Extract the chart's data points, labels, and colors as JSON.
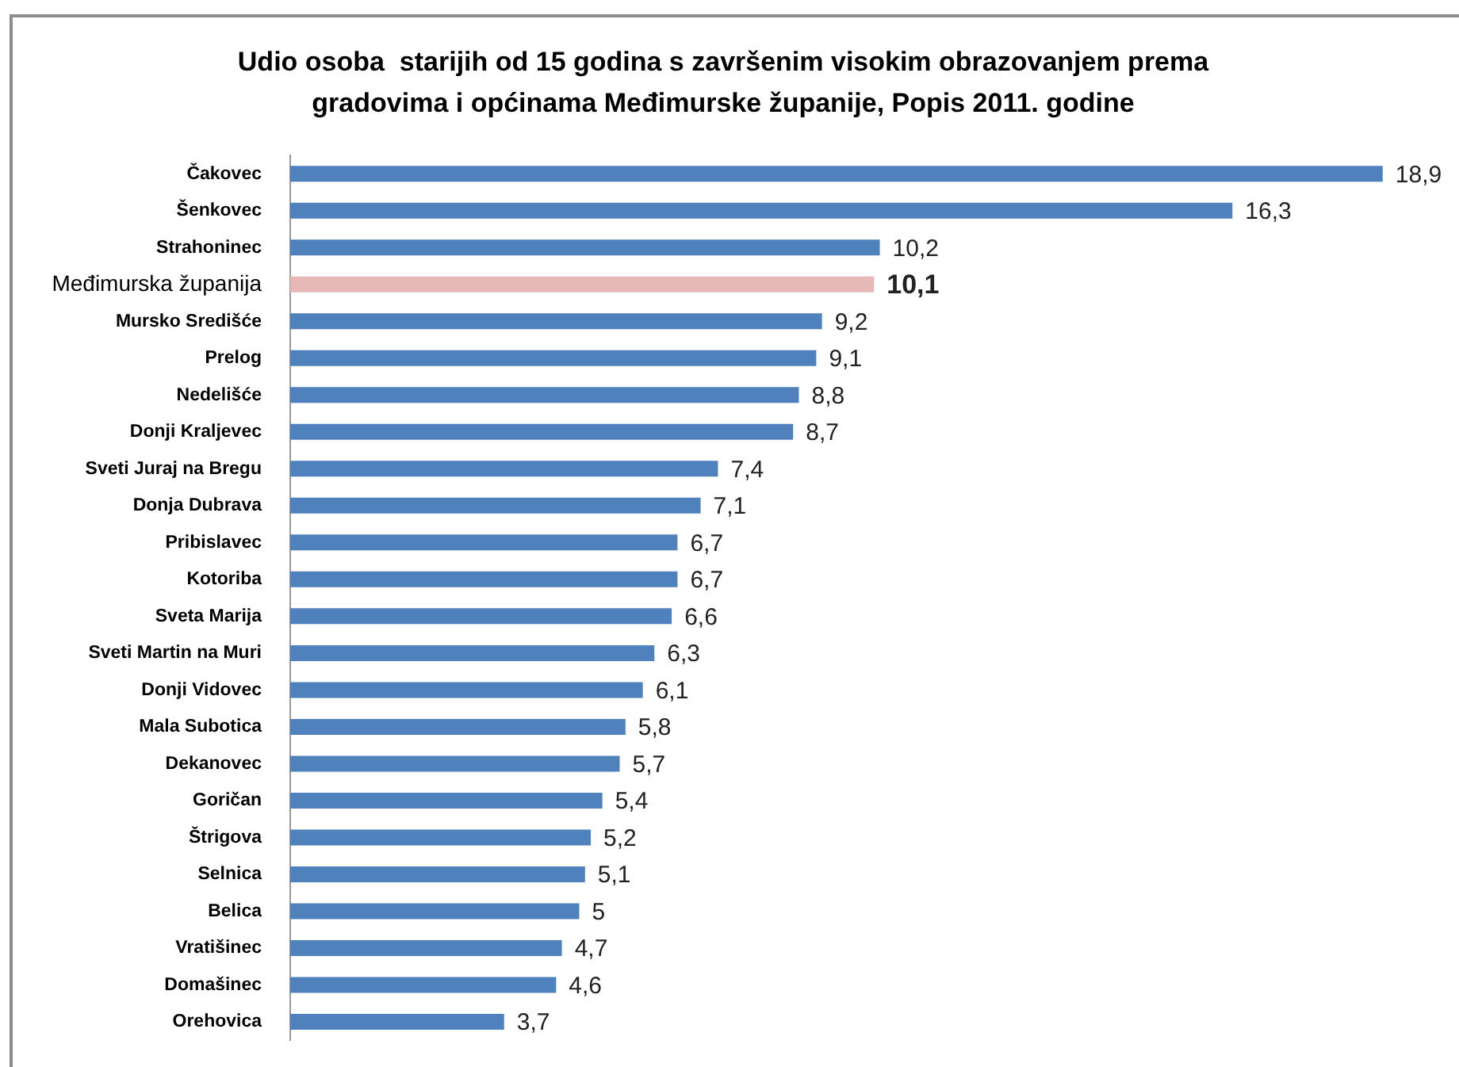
{
  "chart_data": {
    "type": "bar",
    "orientation": "horizontal",
    "title": "Udio osoba  starijih od 15 godina s završenim visokim obrazovanjem prema gradovima i općinama Međimurske županije, Popis 2011. godine",
    "categories": [
      "Čakovec",
      "Šenkovec",
      "Strahoninec",
      "Međimurska županija",
      "Mursko Središće",
      "Prelog",
      "Nedelišće",
      "Donji Kraljevec",
      "Sveti Juraj na Bregu",
      "Donja Dubrava",
      "Pribislavec",
      "Kotoriba",
      "Sveta Marija",
      "Sveti Martin na Muri",
      "Donji Vidovec",
      "Mala Subotica",
      "Dekanovec",
      "Goričan",
      "Štrigova",
      "Selnica",
      "Belica",
      "Vratišinec",
      "Domašinec",
      "Orehovica"
    ],
    "values": [
      18.9,
      16.3,
      10.2,
      10.1,
      9.2,
      9.1,
      8.8,
      8.7,
      7.4,
      7.1,
      6.7,
      6.7,
      6.6,
      6.3,
      6.1,
      5.8,
      5.7,
      5.4,
      5.2,
      5.1,
      5,
      4.7,
      4.6,
      3.7
    ],
    "value_labels": [
      "18,9",
      "16,3",
      "10,2",
      "10,1",
      "9,2",
      "9,1",
      "8,8",
      "8,7",
      "7,4",
      "7,1",
      "6,7",
      "6,7",
      "6,6",
      "6,3",
      "6,1",
      "5,8",
      "5,7",
      "5,4",
      "5,2",
      "5,1",
      "5",
      "4,7",
      "4,6",
      "3,7"
    ],
    "colors": [
      "#4f81bd",
      "#4f81bd",
      "#4f81bd",
      "#e6b9b8",
      "#4f81bd",
      "#4f81bd",
      "#4f81bd",
      "#4f81bd",
      "#4f81bd",
      "#4f81bd",
      "#4f81bd",
      "#4f81bd",
      "#4f81bd",
      "#4f81bd",
      "#4f81bd",
      "#4f81bd",
      "#4f81bd",
      "#4f81bd",
      "#4f81bd",
      "#4f81bd",
      "#4f81bd",
      "#4f81bd",
      "#4f81bd",
      "#4f81bd"
    ]
  }
}
